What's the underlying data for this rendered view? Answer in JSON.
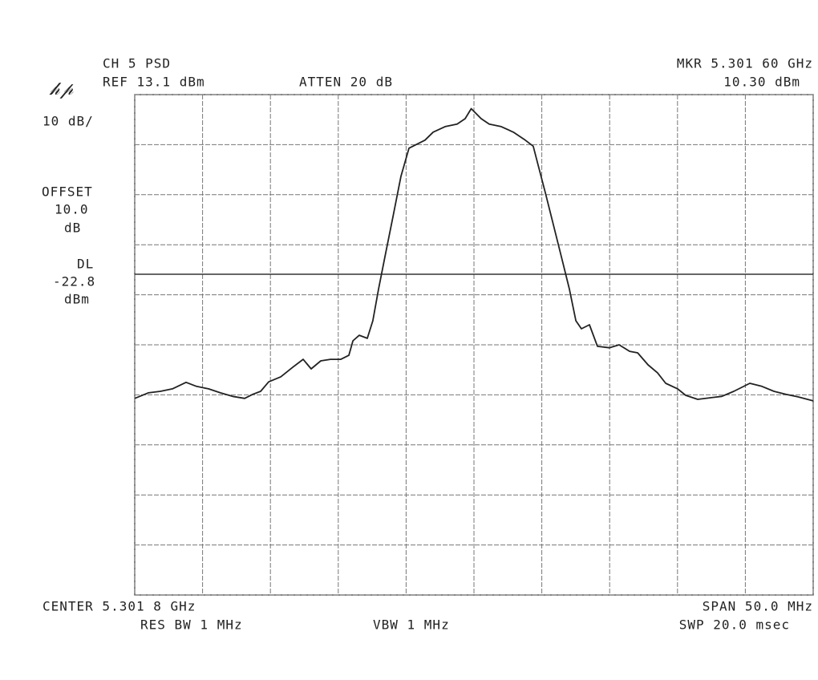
{
  "chart_data": {
    "type": "line",
    "annotations": [
      "CH 5 PSD",
      "REF 13.1 dBm",
      "ATTEN 20 dB",
      "MKR 5.301 60 GHz",
      "10.30 dBm",
      "10 dB/",
      "OFFSET",
      "10.0",
      "dB",
      "CENTER 5.301 8 GHz",
      "RES BW 1 MHz",
      "VBW 1 MHz",
      "SPAN 50.0 MHz",
      "SWP 20.0 msec"
    ],
    "display_line": {
      "label": "DL",
      "value": -22.8,
      "unit": "dBm"
    },
    "xlim": [
      5.2768,
      5.3268
    ],
    "ylim": [
      -86.9,
      13.1
    ],
    "xticks": [
      5.2768,
      5.2818,
      5.2868,
      5.2918,
      5.2968,
      5.3018,
      5.3068,
      5.3118,
      5.3168,
      5.3218,
      5.3268
    ],
    "yticks": [
      13.1,
      3.1,
      -6.9,
      -16.9,
      -26.9,
      -36.9,
      -46.9,
      -56.9,
      -66.9,
      -76.9,
      -86.9
    ],
    "grid": true,
    "x": [
      5.2768,
      5.2778,
      5.27869,
      5.27958,
      5.28058,
      5.28135,
      5.28224,
      5.28312,
      5.28401,
      5.2849,
      5.28549,
      5.28608,
      5.28667,
      5.28756,
      5.28844,
      5.28921,
      5.2898,
      5.29051,
      5.29122,
      5.29199,
      5.29258,
      5.29288,
      5.29335,
      5.29394,
      5.29435,
      5.29477,
      5.29524,
      5.29583,
      5.29642,
      5.29701,
      5.2976,
      5.29819,
      5.29879,
      5.29967,
      5.30056,
      5.30115,
      5.3016,
      5.30233,
      5.30292,
      5.30381,
      5.3047,
      5.30558,
      5.30617,
      5.30659,
      5.30706,
      5.30765,
      5.30824,
      5.30883,
      5.30931,
      5.30972,
      5.31031,
      5.3109,
      5.31179,
      5.3125,
      5.31327,
      5.31386,
      5.31463,
      5.31533,
      5.31593,
      5.31681,
      5.3174,
      5.31829,
      5.31918,
      5.32006,
      5.32095,
      5.32213,
      5.32302,
      5.32391,
      5.32479,
      5.32568,
      5.3268
    ],
    "series": [
      {
        "color": "#222222",
        "values": [
          -47.6,
          -46.5,
          -46.2,
          -45.7,
          -44.4,
          -45.2,
          -45.7,
          -46.5,
          -47.2,
          -47.6,
          -46.8,
          -46.2,
          -44.3,
          -43.3,
          -41.4,
          -39.8,
          -41.7,
          -40.1,
          -39.8,
          -39.8,
          -39.0,
          -36.1,
          -35.0,
          -35.6,
          -32.1,
          -25.7,
          -19.3,
          -11.3,
          -3.2,
          2.4,
          3.2,
          4.0,
          5.6,
          6.7,
          7.2,
          8.3,
          10.3,
          8.3,
          7.2,
          6.7,
          5.6,
          4.0,
          2.8,
          -1.6,
          -6.5,
          -12.9,
          -19.3,
          -25.7,
          -32.1,
          -33.7,
          -32.9,
          -37.2,
          -37.5,
          -36.9,
          -38.2,
          -38.5,
          -40.9,
          -42.5,
          -44.6,
          -45.7,
          -47.0,
          -47.8,
          -47.5,
          -47.2,
          -46.2,
          -44.6,
          -45.2,
          -46.2,
          -46.8,
          -47.3,
          -48.1
        ]
      }
    ]
  }
}
